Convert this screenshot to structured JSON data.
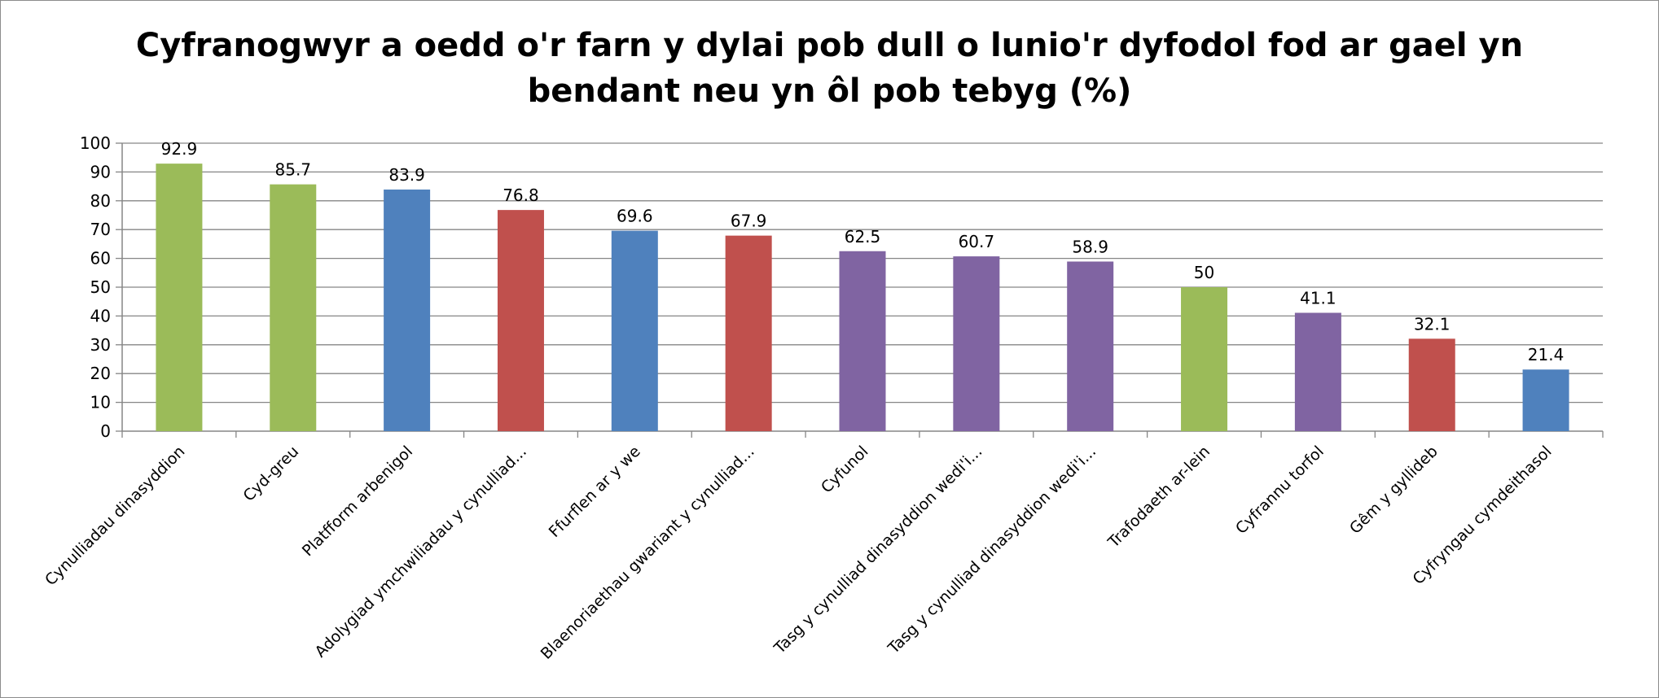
{
  "chart_data": {
    "type": "bar",
    "title_line1": "Cyfranogwyr a oedd o'r farn y dylai pob dull o lunio'r dyfodol fod ar gael yn",
    "title_line2": "bendant neu yn ôl pob tebyg (%)",
    "categories": [
      "Cynulliadau dinasyddion",
      "Cyd-greu",
      "Platfform arbenigol",
      "Adolygiad ymchwiliadau y cynulliad...",
      "Ffurflen ar y we",
      "Blaenoriaethau gwariant y cynulliad...",
      "Cyfunol",
      "Tasg y cynulliad dinasyddion wedi'i...",
      "Tasg y cynulliad dinasyddion wedi'i...",
      "Trafodaeth ar-lein",
      "Cyfrannu torfol",
      "Gêm y gyllideb",
      "Cyfryngau cymdeithasol"
    ],
    "values": [
      92.9,
      85.7,
      83.9,
      76.8,
      69.6,
      67.9,
      62.5,
      60.7,
      58.9,
      50,
      41.1,
      32.1,
      21.4
    ],
    "value_labels": [
      "92.9",
      "85.7",
      "83.9",
      "76.8",
      "69.6",
      "67.9",
      "62.5",
      "60.7",
      "58.9",
      "50",
      "41.1",
      "32.1",
      "21.4"
    ],
    "bar_colors": [
      "#9bbb59",
      "#9bbb59",
      "#4f81bd",
      "#c0504d",
      "#4f81bd",
      "#c0504d",
      "#8064a2",
      "#8064a2",
      "#8064a2",
      "#9bbb59",
      "#8064a2",
      "#c0504d",
      "#4f81bd"
    ],
    "ylim": [
      0,
      100
    ],
    "yticks": [
      0,
      10,
      20,
      30,
      40,
      50,
      60,
      70,
      80,
      90,
      100
    ],
    "xlabel": "",
    "ylabel": "",
    "grid": true,
    "legend": "none"
  }
}
